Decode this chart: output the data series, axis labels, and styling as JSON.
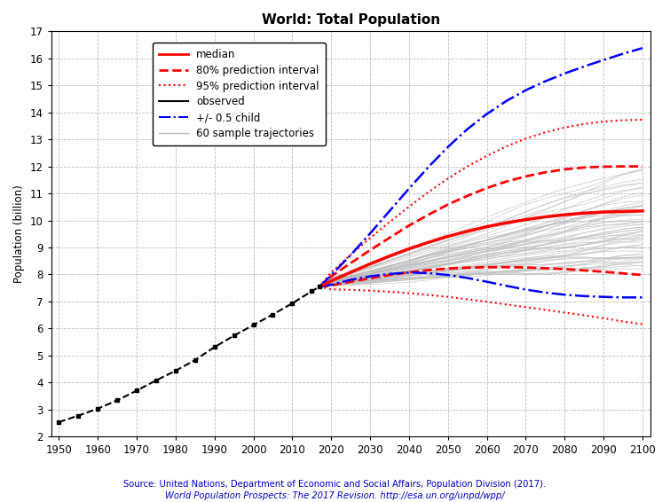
{
  "title": "World: Total Population",
  "ylabel": "Population (billion)",
  "source_line1": "Source: United Nations, Department of Economic and Social Affairs, Population Division (2017).",
  "source_line2": "World Population Prospects: The 2017 Revision. http://esa.un.org/unpd/wpp/",
  "xlim": [
    1948,
    2102
  ],
  "ylim": [
    2,
    17
  ],
  "xticks": [
    1950,
    1960,
    1970,
    1980,
    1990,
    2000,
    2010,
    2020,
    2030,
    2040,
    2050,
    2060,
    2070,
    2080,
    2090,
    2100
  ],
  "yticks": [
    2,
    3,
    4,
    5,
    6,
    7,
    8,
    9,
    10,
    11,
    12,
    13,
    14,
    15,
    16,
    17
  ],
  "background_color": "#ffffff",
  "grid_color": "#bbbbbb",
  "observed_color": "#000000",
  "median_color": "#ff0000",
  "pi80_color": "#ff0000",
  "pi95_color": "#ff0000",
  "half_child_color": "#0000ff",
  "sample_color": "#bbbbbb",
  "observed_years": [
    1950,
    1955,
    1960,
    1965,
    1970,
    1975,
    1980,
    1985,
    1990,
    1995,
    2000,
    2005,
    2010,
    2015,
    2017
  ],
  "observed_pop": [
    2.536,
    2.773,
    3.034,
    3.34,
    3.7,
    4.079,
    4.435,
    4.831,
    5.31,
    5.735,
    6.127,
    6.52,
    6.93,
    7.38,
    7.55
  ],
  "median_years": [
    2017,
    2020,
    2025,
    2030,
    2035,
    2040,
    2045,
    2050,
    2055,
    2060,
    2065,
    2070,
    2075,
    2080,
    2085,
    2090,
    2095,
    2100
  ],
  "median_pop": [
    7.55,
    7.76,
    8.08,
    8.39,
    8.68,
    8.95,
    9.19,
    9.41,
    9.6,
    9.77,
    9.91,
    10.03,
    10.13,
    10.21,
    10.27,
    10.31,
    10.33,
    10.35
  ],
  "pi80_lo": [
    7.55,
    7.59,
    7.73,
    7.86,
    7.98,
    8.08,
    8.16,
    8.22,
    8.25,
    8.27,
    8.27,
    8.26,
    8.23,
    8.2,
    8.15,
    8.1,
    8.04,
    7.98
  ],
  "pi80_hi": [
    7.55,
    7.93,
    8.42,
    8.9,
    9.36,
    9.81,
    10.21,
    10.59,
    10.91,
    11.2,
    11.44,
    11.63,
    11.78,
    11.89,
    11.96,
    11.99,
    12.0,
    12.0
  ],
  "pi95_lo": [
    7.55,
    7.45,
    7.43,
    7.4,
    7.36,
    7.31,
    7.24,
    7.17,
    7.08,
    6.99,
    6.89,
    6.79,
    6.69,
    6.59,
    6.49,
    6.38,
    6.26,
    6.16
  ],
  "pi95_hi": [
    7.55,
    8.08,
    8.73,
    9.35,
    9.94,
    10.51,
    11.05,
    11.55,
    12.0,
    12.39,
    12.74,
    13.03,
    13.26,
    13.44,
    13.57,
    13.66,
    13.71,
    13.73
  ],
  "hc_upper_years": [
    2017,
    2020,
    2025,
    2030,
    2035,
    2040,
    2045,
    2050,
    2055,
    2060,
    2065,
    2070,
    2075,
    2080,
    2085,
    2090,
    2095,
    2100
  ],
  "hc_upper": [
    7.55,
    7.97,
    8.72,
    9.52,
    10.35,
    11.18,
    11.98,
    12.72,
    13.38,
    13.94,
    14.42,
    14.82,
    15.15,
    15.44,
    15.7,
    15.94,
    16.17,
    16.38
  ],
  "hc_lower_years": [
    2017,
    2020,
    2025,
    2030,
    2035,
    2040,
    2045,
    2050,
    2055,
    2060,
    2065,
    2070,
    2075,
    2080,
    2085,
    2090,
    2095,
    2100
  ],
  "hc_lower": [
    7.55,
    7.62,
    7.8,
    7.93,
    8.02,
    8.07,
    8.05,
    7.98,
    7.87,
    7.73,
    7.58,
    7.44,
    7.33,
    7.25,
    7.2,
    7.17,
    7.15,
    7.15
  ]
}
